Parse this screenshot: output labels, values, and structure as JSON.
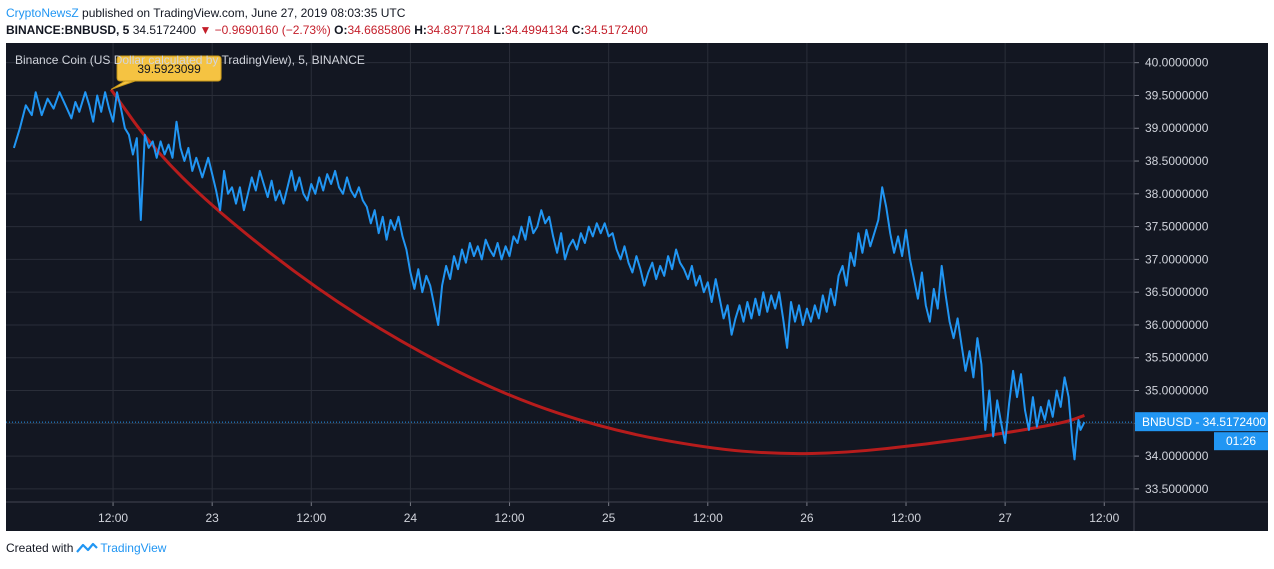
{
  "header": {
    "author": "CryptoNewsZ",
    "published": "published on TradingView.com, June 27, 2019 08:03:35 UTC"
  },
  "ohlc": {
    "symbol": "BINANCE:BNBUSD, 5",
    "last": "34.5172400",
    "change": "−0.9690160 (−2.73%)",
    "o_label": "O:",
    "o": "34.6685806",
    "h_label": "H:",
    "h": "34.8377184",
    "l_label": "L:",
    "l": "34.4994134",
    "c_label": "C:",
    "c": "34.5172400"
  },
  "overlay_title": "Binance Coin (US Dollar calculated by TradingView), 5, BINANCE",
  "footer": {
    "created_with": "Created with",
    "brand": "TradingView"
  },
  "colors": {
    "background": "#131722",
    "price_line": "#2196f3",
    "curve": "#b71c1c",
    "callout": "#f5c342",
    "axis_text": "#d1d4dc",
    "grid": "#2a2e39"
  },
  "chart_data": {
    "type": "line",
    "symbol": "BNBUSD",
    "ylim": [
      33.5,
      40.0
    ],
    "y_ticks": [
      "40.0000000",
      "39.5000000",
      "39.0000000",
      "38.5000000",
      "38.0000000",
      "37.5000000",
      "37.0000000",
      "36.5000000",
      "36.0000000",
      "35.5000000",
      "35.0000000",
      "34.5000000",
      "34.0000000",
      "33.5000000"
    ],
    "x_ticks": [
      {
        "t": 0.5,
        "label": "12:00"
      },
      {
        "t": 1.0,
        "label": "23"
      },
      {
        "t": 1.5,
        "label": "12:00"
      },
      {
        "t": 2.0,
        "label": "24"
      },
      {
        "t": 2.5,
        "label": "12:00"
      },
      {
        "t": 3.0,
        "label": "25"
      },
      {
        "t": 3.5,
        "label": "12:00"
      },
      {
        "t": 4.0,
        "label": "26"
      },
      {
        "t": 4.5,
        "label": "12:00"
      },
      {
        "t": 5.0,
        "label": "27"
      },
      {
        "t": 5.5,
        "label": "12:00"
      }
    ],
    "grid": true,
    "current_price": 34.51724,
    "current_price_label": "BNBUSD - 34.5172400",
    "countdown_label": "01:26",
    "callout": {
      "t": 0.49,
      "y": 39.5923099,
      "label": "39.5923099"
    },
    "price_series": [
      [
        0.0,
        38.7
      ],
      [
        0.03,
        39.0
      ],
      [
        0.06,
        39.35
      ],
      [
        0.09,
        39.2
      ],
      [
        0.11,
        39.55
      ],
      [
        0.14,
        39.2
      ],
      [
        0.17,
        39.45
      ],
      [
        0.2,
        39.3
      ],
      [
        0.23,
        39.55
      ],
      [
        0.26,
        39.35
      ],
      [
        0.29,
        39.15
      ],
      [
        0.31,
        39.4
      ],
      [
        0.33,
        39.25
      ],
      [
        0.36,
        39.55
      ],
      [
        0.38,
        39.35
      ],
      [
        0.4,
        39.1
      ],
      [
        0.42,
        39.5
      ],
      [
        0.44,
        39.25
      ],
      [
        0.46,
        39.55
      ],
      [
        0.48,
        39.3
      ],
      [
        0.5,
        39.1
      ],
      [
        0.52,
        39.55
      ],
      [
        0.54,
        39.3
      ],
      [
        0.56,
        39.0
      ],
      [
        0.58,
        38.9
      ],
      [
        0.6,
        38.6
      ],
      [
        0.62,
        38.85
      ],
      [
        0.64,
        37.6
      ],
      [
        0.66,
        38.9
      ],
      [
        0.68,
        38.7
      ],
      [
        0.7,
        38.8
      ],
      [
        0.72,
        38.55
      ],
      [
        0.74,
        38.8
      ],
      [
        0.76,
        38.6
      ],
      [
        0.78,
        38.75
      ],
      [
        0.8,
        38.55
      ],
      [
        0.82,
        39.1
      ],
      [
        0.84,
        38.7
      ],
      [
        0.86,
        38.5
      ],
      [
        0.88,
        38.7
      ],
      [
        0.9,
        38.35
      ],
      [
        0.92,
        38.55
      ],
      [
        0.95,
        38.25
      ],
      [
        0.98,
        38.55
      ],
      [
        1.0,
        38.3
      ],
      [
        1.02,
        38.05
      ],
      [
        1.04,
        37.75
      ],
      [
        1.06,
        38.35
      ],
      [
        1.08,
        38.0
      ],
      [
        1.1,
        38.1
      ],
      [
        1.12,
        37.85
      ],
      [
        1.14,
        38.1
      ],
      [
        1.16,
        37.75
      ],
      [
        1.18,
        38.0
      ],
      [
        1.2,
        38.25
      ],
      [
        1.22,
        38.05
      ],
      [
        1.24,
        38.35
      ],
      [
        1.26,
        38.15
      ],
      [
        1.28,
        37.95
      ],
      [
        1.3,
        38.2
      ],
      [
        1.32,
        37.9
      ],
      [
        1.34,
        38.05
      ],
      [
        1.36,
        37.85
      ],
      [
        1.38,
        38.1
      ],
      [
        1.4,
        38.35
      ],
      [
        1.42,
        38.05
      ],
      [
        1.44,
        38.25
      ],
      [
        1.46,
        38.0
      ],
      [
        1.48,
        37.9
      ],
      [
        1.5,
        38.15
      ],
      [
        1.52,
        38.0
      ],
      [
        1.54,
        38.25
      ],
      [
        1.56,
        38.05
      ],
      [
        1.58,
        38.3
      ],
      [
        1.6,
        38.15
      ],
      [
        1.62,
        38.35
      ],
      [
        1.64,
        38.1
      ],
      [
        1.66,
        38.0
      ],
      [
        1.68,
        38.25
      ],
      [
        1.7,
        38.05
      ],
      [
        1.72,
        37.95
      ],
      [
        1.74,
        38.1
      ],
      [
        1.76,
        37.9
      ],
      [
        1.78,
        37.8
      ],
      [
        1.8,
        37.55
      ],
      [
        1.82,
        37.75
      ],
      [
        1.84,
        37.4
      ],
      [
        1.86,
        37.65
      ],
      [
        1.88,
        37.3
      ],
      [
        1.9,
        37.6
      ],
      [
        1.92,
        37.45
      ],
      [
        1.94,
        37.65
      ],
      [
        1.96,
        37.35
      ],
      [
        1.98,
        37.15
      ],
      [
        2.0,
        36.8
      ],
      [
        2.02,
        36.55
      ],
      [
        2.04,
        36.85
      ],
      [
        2.06,
        36.5
      ],
      [
        2.08,
        36.75
      ],
      [
        2.1,
        36.6
      ],
      [
        2.12,
        36.3
      ],
      [
        2.14,
        36.0
      ],
      [
        2.16,
        36.6
      ],
      [
        2.18,
        36.9
      ],
      [
        2.2,
        36.7
      ],
      [
        2.22,
        37.05
      ],
      [
        2.24,
        36.85
      ],
      [
        2.26,
        37.15
      ],
      [
        2.28,
        36.95
      ],
      [
        2.3,
        37.25
      ],
      [
        2.32,
        37.05
      ],
      [
        2.34,
        37.2
      ],
      [
        2.36,
        37.0
      ],
      [
        2.38,
        37.3
      ],
      [
        2.4,
        37.15
      ],
      [
        2.42,
        37.05
      ],
      [
        2.44,
        37.25
      ],
      [
        2.46,
        37.0
      ],
      [
        2.48,
        37.2
      ],
      [
        2.5,
        37.05
      ],
      [
        2.52,
        37.35
      ],
      [
        2.54,
        37.25
      ],
      [
        2.56,
        37.5
      ],
      [
        2.58,
        37.3
      ],
      [
        2.6,
        37.65
      ],
      [
        2.62,
        37.4
      ],
      [
        2.64,
        37.5
      ],
      [
        2.66,
        37.75
      ],
      [
        2.68,
        37.55
      ],
      [
        2.7,
        37.65
      ],
      [
        2.72,
        37.35
      ],
      [
        2.74,
        37.1
      ],
      [
        2.76,
        37.4
      ],
      [
        2.78,
        37.0
      ],
      [
        2.8,
        37.2
      ],
      [
        2.82,
        37.3
      ],
      [
        2.84,
        37.15
      ],
      [
        2.86,
        37.4
      ],
      [
        2.88,
        37.25
      ],
      [
        2.9,
        37.5
      ],
      [
        2.92,
        37.35
      ],
      [
        2.94,
        37.55
      ],
      [
        2.96,
        37.4
      ],
      [
        2.98,
        37.55
      ],
      [
        3.0,
        37.35
      ],
      [
        3.02,
        37.4
      ],
      [
        3.04,
        37.15
      ],
      [
        3.06,
        37.0
      ],
      [
        3.08,
        37.2
      ],
      [
        3.1,
        36.95
      ],
      [
        3.12,
        36.8
      ],
      [
        3.14,
        37.05
      ],
      [
        3.16,
        36.85
      ],
      [
        3.18,
        36.6
      ],
      [
        3.2,
        36.8
      ],
      [
        3.22,
        36.95
      ],
      [
        3.24,
        36.7
      ],
      [
        3.26,
        36.9
      ],
      [
        3.28,
        36.75
      ],
      [
        3.3,
        37.05
      ],
      [
        3.32,
        36.85
      ],
      [
        3.34,
        37.15
      ],
      [
        3.36,
        36.95
      ],
      [
        3.38,
        36.85
      ],
      [
        3.4,
        36.7
      ],
      [
        3.42,
        36.9
      ],
      [
        3.44,
        36.6
      ],
      [
        3.46,
        36.75
      ],
      [
        3.48,
        36.5
      ],
      [
        3.5,
        36.65
      ],
      [
        3.52,
        36.35
      ],
      [
        3.54,
        36.7
      ],
      [
        3.56,
        36.4
      ],
      [
        3.58,
        36.1
      ],
      [
        3.6,
        36.3
      ],
      [
        3.62,
        35.85
      ],
      [
        3.64,
        36.1
      ],
      [
        3.66,
        36.3
      ],
      [
        3.68,
        36.05
      ],
      [
        3.7,
        36.35
      ],
      [
        3.72,
        36.1
      ],
      [
        3.74,
        36.4
      ],
      [
        3.76,
        36.15
      ],
      [
        3.78,
        36.5
      ],
      [
        3.8,
        36.2
      ],
      [
        3.82,
        36.45
      ],
      [
        3.84,
        36.25
      ],
      [
        3.86,
        36.5
      ],
      [
        3.88,
        36.1
      ],
      [
        3.9,
        35.65
      ],
      [
        3.92,
        36.35
      ],
      [
        3.94,
        36.05
      ],
      [
        3.96,
        36.3
      ],
      [
        3.98,
        36.0
      ],
      [
        4.0,
        36.25
      ],
      [
        4.02,
        36.05
      ],
      [
        4.04,
        36.3
      ],
      [
        4.06,
        36.1
      ],
      [
        4.08,
        36.45
      ],
      [
        4.1,
        36.2
      ],
      [
        4.12,
        36.55
      ],
      [
        4.14,
        36.3
      ],
      [
        4.16,
        36.75
      ],
      [
        4.18,
        36.9
      ],
      [
        4.2,
        36.6
      ],
      [
        4.22,
        37.1
      ],
      [
        4.24,
        36.9
      ],
      [
        4.26,
        37.4
      ],
      [
        4.28,
        37.1
      ],
      [
        4.3,
        37.45
      ],
      [
        4.32,
        37.2
      ],
      [
        4.34,
        37.4
      ],
      [
        4.36,
        37.6
      ],
      [
        4.38,
        38.1
      ],
      [
        4.4,
        37.8
      ],
      [
        4.42,
        37.4
      ],
      [
        4.44,
        37.1
      ],
      [
        4.46,
        37.35
      ],
      [
        4.48,
        37.05
      ],
      [
        4.5,
        37.45
      ],
      [
        4.52,
        37.0
      ],
      [
        4.54,
        36.7
      ],
      [
        4.56,
        36.4
      ],
      [
        4.58,
        36.8
      ],
      [
        4.6,
        36.3
      ],
      [
        4.62,
        36.05
      ],
      [
        4.64,
        36.55
      ],
      [
        4.66,
        36.25
      ],
      [
        4.68,
        36.9
      ],
      [
        4.7,
        36.45
      ],
      [
        4.72,
        36.05
      ],
      [
        4.74,
        35.8
      ],
      [
        4.76,
        36.1
      ],
      [
        4.78,
        35.7
      ],
      [
        4.8,
        35.3
      ],
      [
        4.82,
        35.6
      ],
      [
        4.84,
        35.2
      ],
      [
        4.86,
        35.8
      ],
      [
        4.88,
        35.4
      ],
      [
        4.9,
        34.4
      ],
      [
        4.92,
        35.0
      ],
      [
        4.94,
        34.3
      ],
      [
        4.96,
        34.85
      ],
      [
        4.98,
        34.5
      ],
      [
        5.0,
        34.2
      ],
      [
        5.02,
        34.8
      ],
      [
        5.04,
        35.3
      ],
      [
        5.06,
        34.9
      ],
      [
        5.08,
        35.25
      ],
      [
        5.1,
        34.7
      ],
      [
        5.12,
        34.4
      ],
      [
        5.14,
        34.9
      ],
      [
        5.16,
        34.45
      ],
      [
        5.18,
        34.75
      ],
      [
        5.2,
        34.55
      ],
      [
        5.22,
        34.85
      ],
      [
        5.24,
        34.6
      ],
      [
        5.26,
        35.0
      ],
      [
        5.28,
        34.75
      ],
      [
        5.3,
        35.2
      ],
      [
        5.32,
        34.9
      ],
      [
        5.34,
        34.2
      ],
      [
        5.35,
        33.95
      ],
      [
        5.36,
        34.3
      ],
      [
        5.37,
        34.55
      ],
      [
        5.38,
        34.4
      ],
      [
        5.4,
        34.51724
      ]
    ],
    "curve_series": [
      [
        0.49,
        39.59
      ],
      [
        0.7,
        38.7
      ],
      [
        1.0,
        37.8
      ],
      [
        1.5,
        36.6
      ],
      [
        2.0,
        35.65
      ],
      [
        2.5,
        34.9
      ],
      [
        3.0,
        34.4
      ],
      [
        3.5,
        34.12
      ],
      [
        3.85,
        34.03
      ],
      [
        4.2,
        34.05
      ],
      [
        4.6,
        34.18
      ],
      [
        5.0,
        34.35
      ],
      [
        5.3,
        34.51
      ],
      [
        5.4,
        34.62
      ]
    ]
  }
}
